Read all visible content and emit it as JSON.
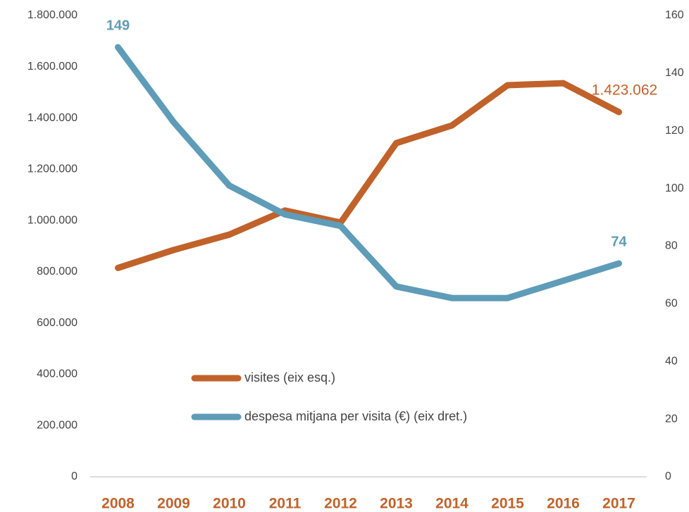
{
  "chart_data": {
    "type": "line",
    "categories": [
      "2008",
      "2009",
      "2010",
      "2011",
      "2012",
      "2013",
      "2014",
      "2015",
      "2016",
      "2017"
    ],
    "series": [
      {
        "name": "visites (eix esq.)",
        "color": "#c0622a",
        "axis": "y",
        "values": [
          815000,
          885000,
          945000,
          1039000,
          992000,
          1302000,
          1371000,
          1528000,
          1536000,
          1423062
        ],
        "value_labels": [
          null,
          null,
          null,
          null,
          null,
          null,
          null,
          null,
          null,
          "1.423.062"
        ]
      },
      {
        "name": "despesa mitjana per visita (€) (eix dret.)",
        "color": "#5e9cb8",
        "axis": "y2",
        "values": [
          149,
          123,
          101,
          91,
          87,
          66,
          62,
          62,
          68,
          74
        ],
        "value_labels": [
          "149",
          null,
          null,
          null,
          null,
          null,
          null,
          null,
          null,
          "74"
        ]
      }
    ],
    "ylim": [
      0,
      1800000
    ],
    "yticks": [
      0,
      {
        "value": 200000,
        "label": "200.000"
      },
      {
        "value": 400000,
        "label": "400.000"
      },
      {
        "value": 600000,
        "label": "600.000"
      },
      {
        "value": 800000,
        "label": "800.000"
      },
      {
        "value": 1000000,
        "label": "1.000.000"
      },
      {
        "value": 1200000,
        "label": "1.200.000"
      },
      {
        "value": 1400000,
        "label": "1.400.000"
      },
      {
        "value": 1600000,
        "label": "1.600.000"
      },
      {
        "value": 1800000,
        "label": "1.800.000"
      }
    ],
    "y2lim": [
      0,
      160
    ],
    "y2ticks": [
      0,
      20,
      40,
      60,
      80,
      100,
      120,
      140,
      160
    ],
    "grid": false,
    "legend": "lower center"
  }
}
